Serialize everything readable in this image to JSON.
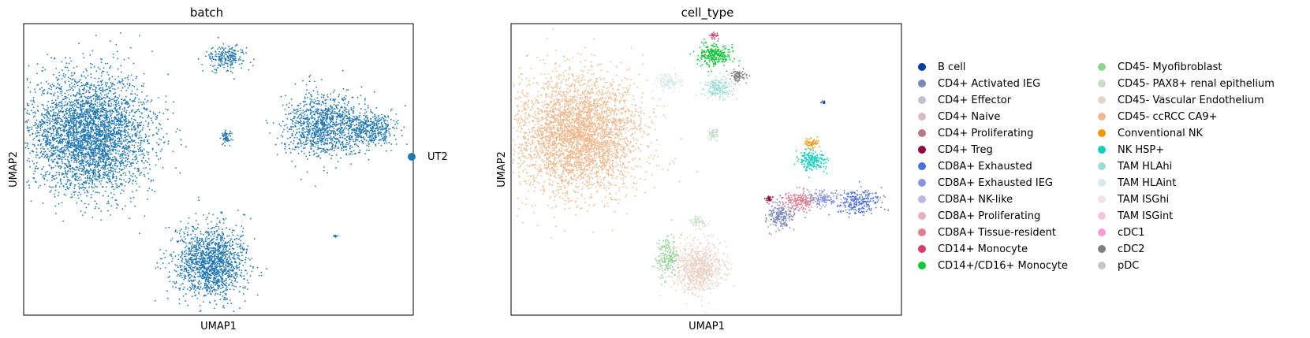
{
  "chart_data": [
    {
      "type": "scatter",
      "title": "batch",
      "xlabel": "UMAP1",
      "ylabel": "UMAP2",
      "ticks": "none",
      "grid": false,
      "legend_position": "right",
      "legend": [
        {
          "name": "UT2",
          "color": "#1f77b4"
        }
      ],
      "clusters": [
        {
          "label": "UT2",
          "cx": 0.17,
          "cy": 0.38,
          "rx": 0.14,
          "ry": 0.18,
          "n": 3800
        },
        {
          "label": "UT2",
          "cx": 0.48,
          "cy": 0.82,
          "rx": 0.08,
          "ry": 0.11,
          "n": 1500
        },
        {
          "label": "UT2",
          "cx": 0.77,
          "cy": 0.35,
          "rx": 0.09,
          "ry": 0.1,
          "n": 1100
        },
        {
          "label": "UT2",
          "cx": 0.89,
          "cy": 0.36,
          "rx": 0.06,
          "ry": 0.05,
          "n": 450
        },
        {
          "label": "UT2",
          "cx": 0.52,
          "cy": 0.12,
          "rx": 0.04,
          "ry": 0.04,
          "n": 220
        },
        {
          "label": "UT2",
          "cx": 0.52,
          "cy": 0.39,
          "rx": 0.012,
          "ry": 0.02,
          "n": 60
        },
        {
          "label": "UT2",
          "cx": 0.8,
          "cy": 0.73,
          "rx": 0.005,
          "ry": 0.004,
          "n": 12
        }
      ]
    },
    {
      "type": "scatter",
      "title": "cell_type",
      "xlabel": "UMAP1",
      "ylabel": "UMAP2",
      "ticks": "none",
      "grid": false,
      "legend_position": "right",
      "legend": [
        {
          "name": "B cell",
          "color": "#023fa5"
        },
        {
          "name": "CD4+ Activated IEG",
          "color": "#7d87b9"
        },
        {
          "name": "CD4+ Effector",
          "color": "#bec1d4"
        },
        {
          "name": "CD4+ Naive",
          "color": "#d6bcc0"
        },
        {
          "name": "CD4+ Proliferating",
          "color": "#bb7784"
        },
        {
          "name": "CD4+ Treg",
          "color": "#8e063b"
        },
        {
          "name": "CD8A+ Exhausted",
          "color": "#4a6fe3"
        },
        {
          "name": "CD8A+ Exhausted IEG",
          "color": "#8595e1"
        },
        {
          "name": "CD8A+ NK-like",
          "color": "#b5bbe3"
        },
        {
          "name": "CD8A+ Proliferating",
          "color": "#e6afb9"
        },
        {
          "name": "CD8A+ Tissue-resident",
          "color": "#e07b91"
        },
        {
          "name": "CD14+ Monocyte",
          "color": "#d33f6a"
        },
        {
          "name": "CD14+/CD16+ Monocyte",
          "color": "#11c638"
        },
        {
          "name": "CD45- Myofibroblast",
          "color": "#8dd593"
        },
        {
          "name": "CD45- PAX8+ renal epithelium",
          "color": "#c6dec7"
        },
        {
          "name": "CD45- Vascular Endothelium",
          "color": "#ead3c6"
        },
        {
          "name": "CD45- ccRCC CA9+",
          "color": "#f0b98d"
        },
        {
          "name": "Conventional NK",
          "color": "#ef9708"
        },
        {
          "name": "NK HSP+",
          "color": "#0fcfc0"
        },
        {
          "name": "TAM HLAhi",
          "color": "#9cded6"
        },
        {
          "name": "TAM HLAint",
          "color": "#d5eae7"
        },
        {
          "name": "TAM ISGhi",
          "color": "#f3e1eb"
        },
        {
          "name": "TAM ISGint",
          "color": "#f6c4e1"
        },
        {
          "name": "cDC1",
          "color": "#f79cd4"
        },
        {
          "name": "cDC2",
          "color": "#7f7f7f"
        },
        {
          "name": "pDC",
          "color": "#c7c7c7"
        }
      ],
      "clusters": [
        {
          "label": "CD45- ccRCC CA9+",
          "cx": 0.17,
          "cy": 0.38,
          "rx": 0.14,
          "ry": 0.18,
          "n": 3800
        },
        {
          "label": "CD45- Vascular Endothelium",
          "cx": 0.48,
          "cy": 0.84,
          "rx": 0.06,
          "ry": 0.08,
          "n": 900
        },
        {
          "label": "CD45- Myofibroblast",
          "cx": 0.4,
          "cy": 0.8,
          "rx": 0.025,
          "ry": 0.06,
          "n": 180
        },
        {
          "label": "CD45- PAX8+ renal epithelium",
          "cx": 0.48,
          "cy": 0.68,
          "rx": 0.02,
          "ry": 0.02,
          "n": 60
        },
        {
          "label": "CD14+/CD16+ Monocyte",
          "cx": 0.52,
          "cy": 0.11,
          "rx": 0.035,
          "ry": 0.035,
          "n": 280
        },
        {
          "label": "TAM HLAhi",
          "cx": 0.53,
          "cy": 0.22,
          "rx": 0.035,
          "ry": 0.035,
          "n": 200
        },
        {
          "label": "TAM HLAint",
          "cx": 0.4,
          "cy": 0.2,
          "rx": 0.03,
          "ry": 0.03,
          "n": 130
        },
        {
          "label": "cDC2",
          "cx": 0.58,
          "cy": 0.18,
          "rx": 0.02,
          "ry": 0.02,
          "n": 90
        },
        {
          "label": "CD14+ Monocyte",
          "cx": 0.52,
          "cy": 0.04,
          "rx": 0.01,
          "ry": 0.01,
          "n": 25
        },
        {
          "label": "CD45- PAX8+ renal epithelium",
          "cx": 0.52,
          "cy": 0.38,
          "rx": 0.01,
          "ry": 0.02,
          "n": 60
        },
        {
          "label": "NK HSP+",
          "cx": 0.77,
          "cy": 0.47,
          "rx": 0.03,
          "ry": 0.03,
          "n": 200
        },
        {
          "label": "Conventional NK",
          "cx": 0.77,
          "cy": 0.41,
          "rx": 0.015,
          "ry": 0.015,
          "n": 60
        },
        {
          "label": "CD8A+ Tissue-resident",
          "cx": 0.74,
          "cy": 0.61,
          "rx": 0.04,
          "ry": 0.03,
          "n": 200
        },
        {
          "label": "CD4+ Activated IEG",
          "cx": 0.69,
          "cy": 0.66,
          "rx": 0.03,
          "ry": 0.04,
          "n": 200
        },
        {
          "label": "CD8A+ Exhausted",
          "cx": 0.89,
          "cy": 0.61,
          "rx": 0.05,
          "ry": 0.04,
          "n": 250
        },
        {
          "label": "CD8A+ Exhausted IEG",
          "cx": 0.8,
          "cy": 0.6,
          "rx": 0.03,
          "ry": 0.025,
          "n": 120
        },
        {
          "label": "CD4+ Treg",
          "cx": 0.66,
          "cy": 0.6,
          "rx": 0.01,
          "ry": 0.01,
          "n": 25
        },
        {
          "label": "B cell",
          "cx": 0.8,
          "cy": 0.27,
          "rx": 0.005,
          "ry": 0.004,
          "n": 12
        }
      ]
    }
  ]
}
